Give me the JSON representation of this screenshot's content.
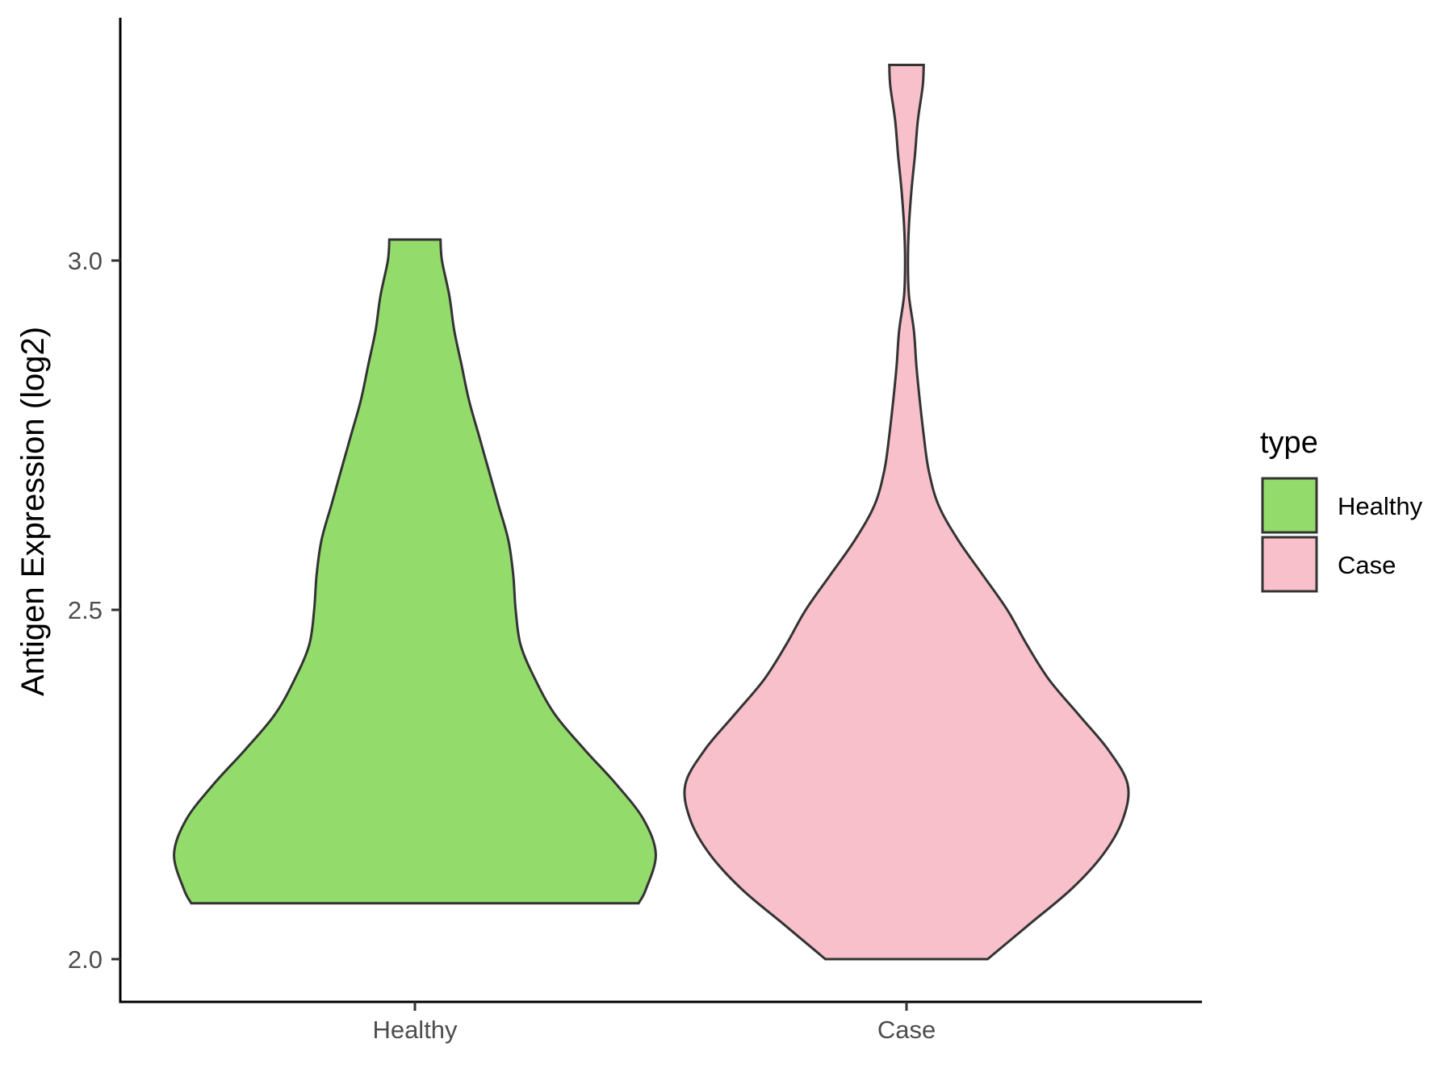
{
  "chart_data": {
    "type": "violin",
    "ylabel": "Antigen Expression (log2)",
    "xlabel": "",
    "categories": [
      "Healthy",
      "Case"
    ],
    "ylim": [
      1.94,
      3.35
    ],
    "yticks": [
      2.0,
      2.5,
      3.0
    ],
    "ytick_labels": [
      "2.0",
      "2.5",
      "3.0"
    ],
    "grid": false,
    "legend": {
      "title": "type",
      "position": "right",
      "entries": [
        {
          "label": "Healthy",
          "color": "#93DC6C"
        },
        {
          "label": "Case",
          "color": "#F8C0CB"
        }
      ]
    },
    "series": [
      {
        "name": "Healthy",
        "color": "#93DC6C",
        "y_min": 2.08,
        "y_max": 3.03,
        "density_profile": [
          [
            2.08,
            0.455
          ],
          [
            2.1,
            0.47
          ],
          [
            2.15,
            0.49
          ],
          [
            2.2,
            0.465
          ],
          [
            2.25,
            0.41
          ],
          [
            2.3,
            0.345
          ],
          [
            2.35,
            0.285
          ],
          [
            2.4,
            0.245
          ],
          [
            2.45,
            0.215
          ],
          [
            2.5,
            0.205
          ],
          [
            2.55,
            0.2
          ],
          [
            2.6,
            0.19
          ],
          [
            2.65,
            0.17
          ],
          [
            2.7,
            0.15
          ],
          [
            2.75,
            0.13
          ],
          [
            2.8,
            0.11
          ],
          [
            2.85,
            0.095
          ],
          [
            2.9,
            0.08
          ],
          [
            2.95,
            0.07
          ],
          [
            3.0,
            0.055
          ],
          [
            3.03,
            0.052
          ]
        ]
      },
      {
        "name": "Case",
        "color": "#F8C0CB",
        "y_min": 2.0,
        "y_max": 3.28,
        "density_profile": [
          [
            2.0,
            0.165
          ],
          [
            2.05,
            0.25
          ],
          [
            2.1,
            0.335
          ],
          [
            2.15,
            0.4
          ],
          [
            2.2,
            0.44
          ],
          [
            2.25,
            0.45
          ],
          [
            2.3,
            0.41
          ],
          [
            2.35,
            0.35
          ],
          [
            2.4,
            0.29
          ],
          [
            2.45,
            0.245
          ],
          [
            2.5,
            0.205
          ],
          [
            2.55,
            0.155
          ],
          [
            2.6,
            0.105
          ],
          [
            2.65,
            0.065
          ],
          [
            2.7,
            0.045
          ],
          [
            2.75,
            0.035
          ],
          [
            2.8,
            0.027
          ],
          [
            2.85,
            0.02
          ],
          [
            2.9,
            0.015
          ],
          [
            2.95,
            0.005
          ],
          [
            3.0,
            0.003
          ],
          [
            3.05,
            0.005
          ],
          [
            3.1,
            0.01
          ],
          [
            3.15,
            0.017
          ],
          [
            3.2,
            0.023
          ],
          [
            3.25,
            0.033
          ],
          [
            3.28,
            0.035
          ]
        ]
      }
    ]
  }
}
